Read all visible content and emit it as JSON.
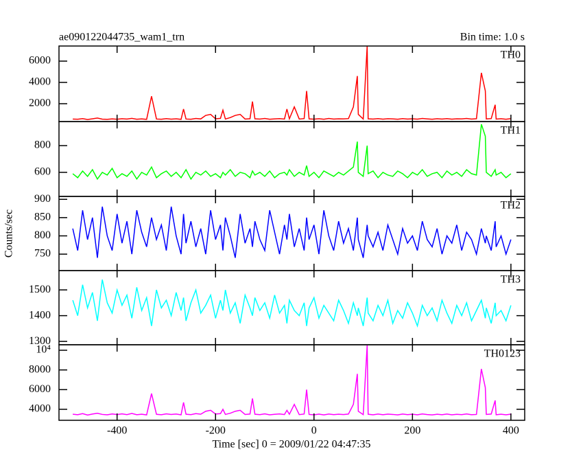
{
  "chart_data": {
    "type": "line",
    "title": "ae090122044735_wam1_trn",
    "subtitle": "Bin time: 1.0 s",
    "ylabel": "Counts/sec",
    "xlabel": "Time [sec] 0 = 2009/01/22 04:47:35",
    "xlim": [
      -518,
      428
    ],
    "xticks": [
      -400,
      -200,
      0,
      200,
      400
    ],
    "x": [
      -490,
      -480,
      -470,
      -460,
      -450,
      -440,
      -430,
      -420,
      -410,
      -400,
      -390,
      -380,
      -370,
      -360,
      -350,
      -340,
      -330,
      -320,
      -310,
      -300,
      -290,
      -280,
      -270,
      -265,
      -260,
      -250,
      -240,
      -230,
      -220,
      -210,
      -200,
      -190,
      -185,
      -180,
      -170,
      -160,
      -150,
      -140,
      -130,
      -125,
      -120,
      -110,
      -100,
      -90,
      -80,
      -70,
      -60,
      -55,
      -50,
      -40,
      -30,
      -20,
      -15,
      -10,
      0,
      10,
      20,
      30,
      40,
      50,
      60,
      70,
      80,
      88,
      90,
      100,
      108,
      110,
      120,
      130,
      140,
      150,
      160,
      170,
      180,
      190,
      200,
      210,
      220,
      230,
      240,
      250,
      260,
      270,
      280,
      290,
      300,
      310,
      320,
      330,
      340,
      348,
      350,
      360,
      368,
      370,
      380,
      390,
      400
    ],
    "panels": [
      {
        "name": "TH0",
        "color": "#ff0000",
        "ylim": [
          323,
          7419
        ],
        "yticks": [
          2000,
          4000,
          6000
        ],
        "values": [
          560,
          540,
          600,
          520,
          580,
          650,
          550,
          530,
          570,
          540,
          590,
          560,
          620,
          540,
          570,
          530,
          2700,
          560,
          540,
          600,
          550,
          580,
          530,
          1500,
          560,
          540,
          610,
          570,
          900,
          1000,
          580,
          620,
          1400,
          560,
          700,
          900,
          1000,
          560,
          590,
          2200,
          580,
          560,
          610,
          540,
          570,
          600,
          560,
          1500,
          580,
          1700,
          560,
          600,
          3200,
          570,
          550,
          590,
          540,
          610,
          560,
          580,
          570,
          600,
          1700,
          4600,
          1000,
          560,
          7400,
          580,
          560,
          600,
          550,
          590,
          570,
          540,
          600,
          560,
          580,
          550,
          610,
          570,
          540,
          590,
          560,
          600,
          550,
          580,
          570,
          610,
          560,
          590,
          4900,
          3200,
          570,
          600,
          1900,
          560,
          590,
          540,
          600
        ]
      },
      {
        "name": "TH1",
        "color": "#00ff00",
        "ylim": [
          420,
          980
        ],
        "yticks": [
          600,
          800
        ],
        "values": [
          590,
          560,
          610,
          570,
          620,
          550,
          600,
          580,
          630,
          560,
          590,
          570,
          610,
          550,
          600,
          580,
          640,
          560,
          590,
          610,
          570,
          600,
          560,
          590,
          620,
          550,
          600,
          580,
          610,
          570,
          590,
          560,
          600,
          580,
          620,
          570,
          600,
          590,
          560,
          610,
          580,
          600,
          570,
          610,
          560,
          590,
          600,
          580,
          620,
          570,
          600,
          580,
          650,
          570,
          600,
          560,
          610,
          590,
          570,
          600,
          580,
          610,
          640,
          830,
          600,
          570,
          800,
          590,
          610,
          560,
          600,
          580,
          570,
          610,
          590,
          560,
          600,
          580,
          620,
          570,
          590,
          600,
          560,
          610,
          580,
          600,
          570,
          620,
          590,
          580,
          960,
          870,
          600,
          570,
          620,
          580,
          600,
          560,
          590
        ]
      },
      {
        "name": "TH2",
        "color": "#0000ff",
        "ylim": [
          705,
          908
        ],
        "yticks": [
          750,
          800,
          850,
          900
        ],
        "values": [
          820,
          760,
          870,
          790,
          850,
          740,
          880,
          800,
          760,
          860,
          780,
          840,
          750,
          870,
          810,
          770,
          850,
          790,
          830,
          760,
          880,
          800,
          750,
          860,
          780,
          840,
          770,
          820,
          750,
          870,
          790,
          830,
          760,
          850,
          800,
          740,
          860,
          780,
          820,
          770,
          840,
          790,
          760,
          870,
          810,
          750,
          830,
          790,
          860,
          770,
          820,
          760,
          850,
          790,
          830,
          750,
          870,
          800,
          760,
          840,
          780,
          820,
          760,
          850,
          790,
          740,
          830,
          800,
          770,
          810,
          760,
          830,
          790,
          750,
          820,
          780,
          800,
          760,
          840,
          790,
          770,
          820,
          750,
          800,
          780,
          830,
          760,
          810,
          790,
          750,
          820,
          780,
          800,
          760,
          840,
          770,
          800,
          750,
          790
        ]
      },
      {
        "name": "TH3",
        "color": "#00ffff",
        "ylim": [
          1287,
          1575
        ],
        "yticks": [
          1300,
          1400,
          1500
        ],
        "values": [
          1460,
          1400,
          1520,
          1430,
          1490,
          1380,
          1540,
          1450,
          1410,
          1500,
          1440,
          1480,
          1390,
          1510,
          1420,
          1470,
          1360,
          1500,
          1430,
          1460,
          1400,
          1490,
          1420,
          1470,
          1380,
          1450,
          1500,
          1410,
          1440,
          1480,
          1390,
          1460,
          1420,
          1500,
          1410,
          1450,
          1370,
          1480,
          1430,
          1400,
          1470,
          1420,
          1450,
          1390,
          1480,
          1410,
          1440,
          1370,
          1460,
          1420,
          1400,
          1450,
          1360,
          1430,
          1470,
          1390,
          1440,
          1410,
          1380,
          1460,
          1420,
          1370,
          1450,
          1400,
          1430,
          1360,
          1470,
          1410,
          1380,
          1440,
          1400,
          1460,
          1370,
          1420,
          1390,
          1450,
          1410,
          1360,
          1440,
          1400,
          1430,
          1380,
          1460,
          1410,
          1370,
          1440,
          1400,
          1450,
          1380,
          1420,
          1460,
          1390,
          1430,
          1370,
          1450,
          1400,
          1420,
          1380,
          1440
        ]
      },
      {
        "name": "TH0123",
        "color": "#ff00ff",
        "ylim": [
          2883,
          10558
        ],
        "yticks": [
          4000,
          6000,
          8000,
          {
            "value": 10000,
            "label": "10⁴"
          }
        ],
        "values": [
          3500,
          3450,
          3560,
          3420,
          3520,
          3600,
          3480,
          3440,
          3530,
          3470,
          3540,
          3460,
          3580,
          3450,
          3500,
          3430,
          5600,
          3490,
          3450,
          3540,
          3480,
          3520,
          3440,
          4700,
          3500,
          3460,
          3560,
          3500,
          3800,
          3900,
          3520,
          3560,
          4000,
          3480,
          3600,
          3800,
          3900,
          3480,
          3520,
          5100,
          3500,
          3460,
          3540,
          3440,
          3490,
          3530,
          3470,
          3900,
          3500,
          4500,
          3460,
          3520,
          6000,
          3480,
          3440,
          3510,
          3430,
          3520,
          3460,
          3500,
          3470,
          3520,
          4500,
          7600,
          3800,
          3460,
          10500,
          3500,
          3440,
          3520,
          3450,
          3510,
          3480,
          3430,
          3520,
          3460,
          3500,
          3440,
          3530,
          3470,
          3430,
          3500,
          3450,
          3520,
          3440,
          3490,
          3460,
          3530,
          3450,
          3480,
          8100,
          6200,
          3480,
          3520,
          4900,
          3450,
          3500,
          3440,
          3510
        ]
      }
    ]
  }
}
